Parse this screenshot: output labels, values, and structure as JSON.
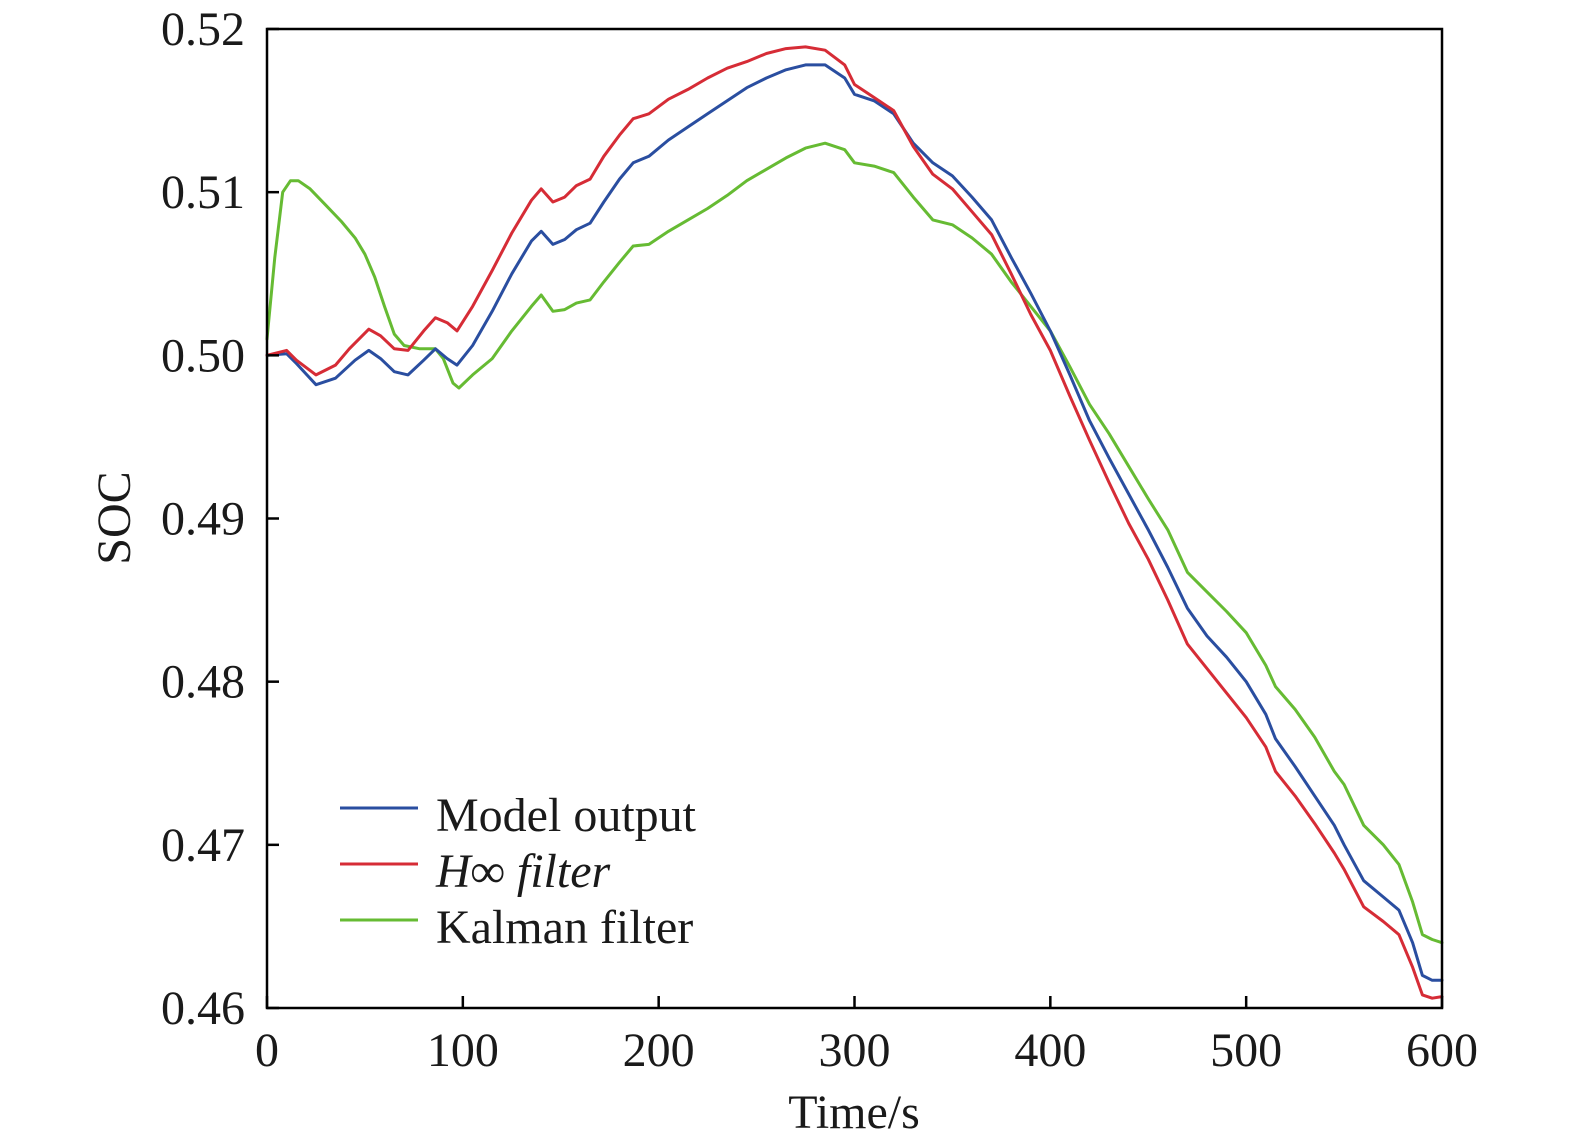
{
  "chart_data": {
    "type": "line",
    "xlabel": "Time/s",
    "ylabel": "SOC",
    "xlim": [
      0,
      600
    ],
    "ylim": [
      0.46,
      0.52
    ],
    "xticks": [
      0,
      100,
      200,
      300,
      400,
      500,
      600
    ],
    "xtick_labels": [
      "0",
      "100",
      "200",
      "300",
      "400",
      "500",
      "600"
    ],
    "yticks": [
      0.46,
      0.47,
      0.48,
      0.49,
      0.5,
      0.51,
      0.52
    ],
    "ytick_labels": [
      "0.46",
      "0.47",
      "0.48",
      "0.49",
      "0.50",
      "0.51",
      "0.52"
    ],
    "grid": false,
    "legend_position": "bottom-left",
    "series": [
      {
        "name": "Model output",
        "color": "#2a4ea0",
        "points": [
          [
            0,
            0.5
          ],
          [
            10,
            0.5001
          ],
          [
            15,
            0.4995
          ],
          [
            25,
            0.4982
          ],
          [
            35,
            0.4986
          ],
          [
            45,
            0.4997
          ],
          [
            52,
            0.5003
          ],
          [
            58,
            0.4998
          ],
          [
            65,
            0.499
          ],
          [
            72,
            0.4988
          ],
          [
            80,
            0.4997
          ],
          [
            86,
            0.5004
          ],
          [
            92,
            0.4998
          ],
          [
            97,
            0.4994
          ],
          [
            105,
            0.5006
          ],
          [
            115,
            0.5027
          ],
          [
            125,
            0.505
          ],
          [
            135,
            0.507
          ],
          [
            140,
            0.5076
          ],
          [
            146,
            0.5068
          ],
          [
            152,
            0.5071
          ],
          [
            158,
            0.5077
          ],
          [
            165,
            0.5081
          ],
          [
            172,
            0.5094
          ],
          [
            180,
            0.5108
          ],
          [
            187,
            0.5118
          ],
          [
            195,
            0.5122
          ],
          [
            205,
            0.5132
          ],
          [
            215,
            0.514
          ],
          [
            225,
            0.5148
          ],
          [
            235,
            0.5156
          ],
          [
            245,
            0.5164
          ],
          [
            255,
            0.517
          ],
          [
            265,
            0.5175
          ],
          [
            275,
            0.5178
          ],
          [
            285,
            0.5178
          ],
          [
            295,
            0.517
          ],
          [
            300,
            0.516
          ],
          [
            310,
            0.5156
          ],
          [
            320,
            0.5148
          ],
          [
            330,
            0.513
          ],
          [
            340,
            0.5118
          ],
          [
            350,
            0.511
          ],
          [
            360,
            0.5097
          ],
          [
            370,
            0.5083
          ],
          [
            380,
            0.506
          ],
          [
            390,
            0.5038
          ],
          [
            400,
            0.5015
          ],
          [
            410,
            0.4988
          ],
          [
            420,
            0.496
          ],
          [
            430,
            0.4937
          ],
          [
            440,
            0.4915
          ],
          [
            450,
            0.4893
          ],
          [
            460,
            0.487
          ],
          [
            470,
            0.4845
          ],
          [
            480,
            0.4828
          ],
          [
            490,
            0.4815
          ],
          [
            500,
            0.48
          ],
          [
            510,
            0.478
          ],
          [
            515,
            0.4765
          ],
          [
            525,
            0.4748
          ],
          [
            535,
            0.473
          ],
          [
            545,
            0.4712
          ],
          [
            550,
            0.47
          ],
          [
            560,
            0.4678
          ],
          [
            570,
            0.4668
          ],
          [
            578,
            0.466
          ],
          [
            585,
            0.464
          ],
          [
            590,
            0.462
          ],
          [
            595,
            0.4617
          ],
          [
            600,
            0.4617
          ]
        ]
      },
      {
        "name": "H∞ filter",
        "color": "#d62c36",
        "points": [
          [
            0,
            0.5
          ],
          [
            10,
            0.5003
          ],
          [
            15,
            0.4997
          ],
          [
            25,
            0.4988
          ],
          [
            35,
            0.4994
          ],
          [
            42,
            0.5004
          ],
          [
            52,
            0.5016
          ],
          [
            58,
            0.5012
          ],
          [
            65,
            0.5004
          ],
          [
            72,
            0.5003
          ],
          [
            80,
            0.5015
          ],
          [
            86,
            0.5023
          ],
          [
            92,
            0.502
          ],
          [
            97,
            0.5015
          ],
          [
            105,
            0.503
          ],
          [
            115,
            0.5052
          ],
          [
            125,
            0.5075
          ],
          [
            135,
            0.5095
          ],
          [
            140,
            0.5102
          ],
          [
            146,
            0.5094
          ],
          [
            152,
            0.5097
          ],
          [
            158,
            0.5104
          ],
          [
            165,
            0.5108
          ],
          [
            172,
            0.5122
          ],
          [
            180,
            0.5135
          ],
          [
            187,
            0.5145
          ],
          [
            195,
            0.5148
          ],
          [
            205,
            0.5157
          ],
          [
            215,
            0.5163
          ],
          [
            225,
            0.517
          ],
          [
            235,
            0.5176
          ],
          [
            245,
            0.518
          ],
          [
            255,
            0.5185
          ],
          [
            265,
            0.5188
          ],
          [
            275,
            0.5189
          ],
          [
            285,
            0.5187
          ],
          [
            295,
            0.5178
          ],
          [
            300,
            0.5166
          ],
          [
            310,
            0.5158
          ],
          [
            320,
            0.515
          ],
          [
            330,
            0.5128
          ],
          [
            340,
            0.5111
          ],
          [
            350,
            0.5102
          ],
          [
            360,
            0.5088
          ],
          [
            370,
            0.5074
          ],
          [
            380,
            0.505
          ],
          [
            390,
            0.5025
          ],
          [
            400,
            0.5003
          ],
          [
            410,
            0.4975
          ],
          [
            420,
            0.4948
          ],
          [
            430,
            0.4922
          ],
          [
            440,
            0.4897
          ],
          [
            450,
            0.4875
          ],
          [
            460,
            0.485
          ],
          [
            470,
            0.4823
          ],
          [
            480,
            0.4808
          ],
          [
            490,
            0.4793
          ],
          [
            500,
            0.4778
          ],
          [
            510,
            0.476
          ],
          [
            515,
            0.4745
          ],
          [
            525,
            0.473
          ],
          [
            535,
            0.4713
          ],
          [
            545,
            0.4695
          ],
          [
            550,
            0.4685
          ],
          [
            560,
            0.4662
          ],
          [
            570,
            0.4653
          ],
          [
            578,
            0.4645
          ],
          [
            585,
            0.4625
          ],
          [
            590,
            0.4608
          ],
          [
            595,
            0.4606
          ],
          [
            600,
            0.4607
          ]
        ]
      },
      {
        "name": "Kalman filter",
        "color": "#66bb33",
        "points": [
          [
            0,
            0.501
          ],
          [
            4,
            0.506
          ],
          [
            8,
            0.51
          ],
          [
            12,
            0.5107
          ],
          [
            16,
            0.5107
          ],
          [
            22,
            0.5102
          ],
          [
            30,
            0.5092
          ],
          [
            38,
            0.5082
          ],
          [
            45,
            0.5072
          ],
          [
            50,
            0.5062
          ],
          [
            55,
            0.5048
          ],
          [
            60,
            0.503
          ],
          [
            65,
            0.5013
          ],
          [
            70,
            0.5006
          ],
          [
            78,
            0.5004
          ],
          [
            86,
            0.5004
          ],
          [
            90,
            0.4998
          ],
          [
            95,
            0.4983
          ],
          [
            98,
            0.498
          ],
          [
            105,
            0.4988
          ],
          [
            115,
            0.4998
          ],
          [
            125,
            0.5015
          ],
          [
            135,
            0.503
          ],
          [
            140,
            0.5037
          ],
          [
            146,
            0.5027
          ],
          [
            152,
            0.5028
          ],
          [
            158,
            0.5032
          ],
          [
            165,
            0.5034
          ],
          [
            172,
            0.5045
          ],
          [
            180,
            0.5057
          ],
          [
            187,
            0.5067
          ],
          [
            195,
            0.5068
          ],
          [
            205,
            0.5076
          ],
          [
            215,
            0.5083
          ],
          [
            225,
            0.509
          ],
          [
            235,
            0.5098
          ],
          [
            245,
            0.5107
          ],
          [
            255,
            0.5114
          ],
          [
            265,
            0.5121
          ],
          [
            275,
            0.5127
          ],
          [
            285,
            0.513
          ],
          [
            295,
            0.5126
          ],
          [
            300,
            0.5118
          ],
          [
            310,
            0.5116
          ],
          [
            320,
            0.5112
          ],
          [
            330,
            0.5097
          ],
          [
            340,
            0.5083
          ],
          [
            350,
            0.508
          ],
          [
            360,
            0.5072
          ],
          [
            370,
            0.5062
          ],
          [
            380,
            0.5045
          ],
          [
            390,
            0.503
          ],
          [
            400,
            0.5015
          ],
          [
            410,
            0.4993
          ],
          [
            420,
            0.497
          ],
          [
            430,
            0.4952
          ],
          [
            440,
            0.4932
          ],
          [
            450,
            0.4912
          ],
          [
            460,
            0.4893
          ],
          [
            470,
            0.4867
          ],
          [
            480,
            0.4855
          ],
          [
            490,
            0.4843
          ],
          [
            500,
            0.483
          ],
          [
            510,
            0.481
          ],
          [
            515,
            0.4797
          ],
          [
            525,
            0.4783
          ],
          [
            535,
            0.4766
          ],
          [
            545,
            0.4745
          ],
          [
            550,
            0.4737
          ],
          [
            560,
            0.4712
          ],
          [
            570,
            0.47
          ],
          [
            578,
            0.4688
          ],
          [
            585,
            0.4665
          ],
          [
            590,
            0.4645
          ],
          [
            595,
            0.4642
          ],
          [
            600,
            0.464
          ]
        ]
      }
    ]
  }
}
